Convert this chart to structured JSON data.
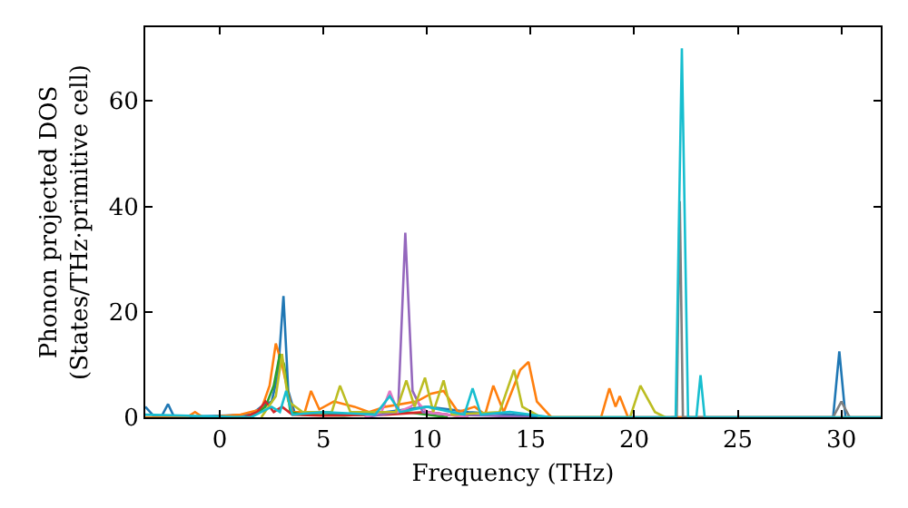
{
  "chart_data": {
    "type": "line",
    "xlabel": "Frequency (THz)",
    "ylabel": "Phonon projected DOS\n(States/THz·primitive cell)",
    "xlim": [
      -3.6,
      31.9
    ],
    "ylim": [
      0,
      74
    ],
    "xticks": [
      0,
      5,
      10,
      15,
      20,
      25,
      30
    ],
    "yticks": [
      0,
      20,
      40,
      60
    ],
    "grid": false,
    "marker": "none",
    "line_style": "solid",
    "series": [
      {
        "color": "#1f77b4",
        "x": [
          -3.6,
          -3.2,
          -2.8,
          -2.5,
          -2.2,
          1.5,
          2.0,
          2.5,
          2.8,
          3.07,
          3.3,
          3.6,
          4.5,
          6,
          8,
          9,
          10,
          12,
          14,
          16,
          29.6,
          29.9,
          30.2,
          31.9
        ],
        "values": [
          2,
          0.3,
          0.3,
          2.5,
          0,
          0.5,
          2,
          3,
          8,
          23,
          5,
          1,
          1,
          0.5,
          1,
          1.5,
          2,
          1,
          0.5,
          0,
          0,
          12.5,
          0,
          0
        ]
      },
      {
        "color": "#ff7f0e",
        "x": [
          -3.6,
          -1.6,
          -1.2,
          -0.8,
          1,
          2,
          2.4,
          2.7,
          3.0,
          3.5,
          4.1,
          4.4,
          4.8,
          5.5,
          6.5,
          7.2,
          8,
          9.5,
          10.2,
          10.8,
          11.5,
          12.3,
          12.8,
          13.2,
          13.7,
          14.5,
          14.9,
          15.3,
          16,
          18.4,
          18.8,
          19.1,
          19.3,
          19.7,
          22,
          31.9
        ],
        "values": [
          0,
          0,
          1,
          0,
          0.5,
          1.5,
          6,
          14,
          10,
          1,
          1,
          5,
          1.5,
          3,
          2,
          1,
          2,
          3,
          4.5,
          5,
          1,
          2,
          0.5,
          6,
          1,
          9,
          10.5,
          3,
          0,
          0,
          5.5,
          2,
          4,
          0,
          0,
          0
        ]
      },
      {
        "color": "#2ca02c",
        "x": [
          1.5,
          2.2,
          2.6,
          2.9,
          3.1,
          3.4,
          4,
          6,
          9,
          11
        ],
        "values": [
          0,
          2,
          6,
          12,
          10,
          1,
          0.5,
          0.3,
          1,
          0
        ]
      },
      {
        "color": "#d62728",
        "x": [
          1.2,
          1.8,
          2.2,
          2.6,
          3.0,
          3.5,
          5,
          8,
          10,
          12
        ],
        "values": [
          0,
          1,
          3,
          1,
          2,
          0.5,
          0.3,
          0.5,
          1,
          0
        ]
      },
      {
        "color": "#9467bd",
        "x": [
          7,
          8.6,
          8.95,
          9.3,
          9.8,
          11,
          13,
          15
        ],
        "values": [
          0,
          1,
          35,
          5,
          1,
          0.5,
          0.3,
          0
        ]
      },
      {
        "color": "#e377c2",
        "x": [
          7,
          7.8,
          8.2,
          8.6,
          9.2,
          9.5,
          10,
          11,
          12
        ],
        "values": [
          0,
          1,
          5,
          1,
          2,
          3,
          1,
          0.5,
          0
        ]
      },
      {
        "color": "#7f7f7f",
        "x": [
          21.8,
          22.05,
          22.2,
          22.35,
          22.6,
          29.6,
          30,
          30.4
        ],
        "values": [
          0,
          0,
          41,
          0,
          0,
          0,
          3,
          0
        ]
      },
      {
        "color": "#bcbd22",
        "x": [
          2,
          2.7,
          3.0,
          3.3,
          4,
          5.4,
          5.8,
          6.3,
          8.5,
          9,
          9.4,
          9.9,
          10.3,
          10.8,
          11.2,
          13.5,
          14.2,
          14.6,
          15.5,
          19.8,
          20.3,
          21,
          21.5
        ],
        "values": [
          0,
          4,
          12,
          3,
          1,
          1,
          6,
          1,
          1,
          7,
          2,
          7.5,
          1,
          7,
          0.5,
          1,
          9,
          2,
          0,
          0,
          6,
          1,
          0
        ]
      },
      {
        "color": "#17becf",
        "x": [
          -3.6,
          1.5,
          2.5,
          2.9,
          3.2,
          3.5,
          5,
          7.5,
          8.2,
          8.7,
          10,
          11.8,
          12.2,
          12.6,
          14,
          16,
          22.0,
          22.3,
          22.6,
          23.0,
          23.2,
          23.4,
          24,
          31.9
        ],
        "values": [
          0.5,
          0,
          2,
          1,
          5,
          0.5,
          1,
          0.5,
          4,
          1,
          2,
          0.5,
          5.5,
          0.5,
          1,
          0,
          0,
          70,
          0,
          0,
          8,
          0,
          0,
          0
        ]
      }
    ]
  }
}
